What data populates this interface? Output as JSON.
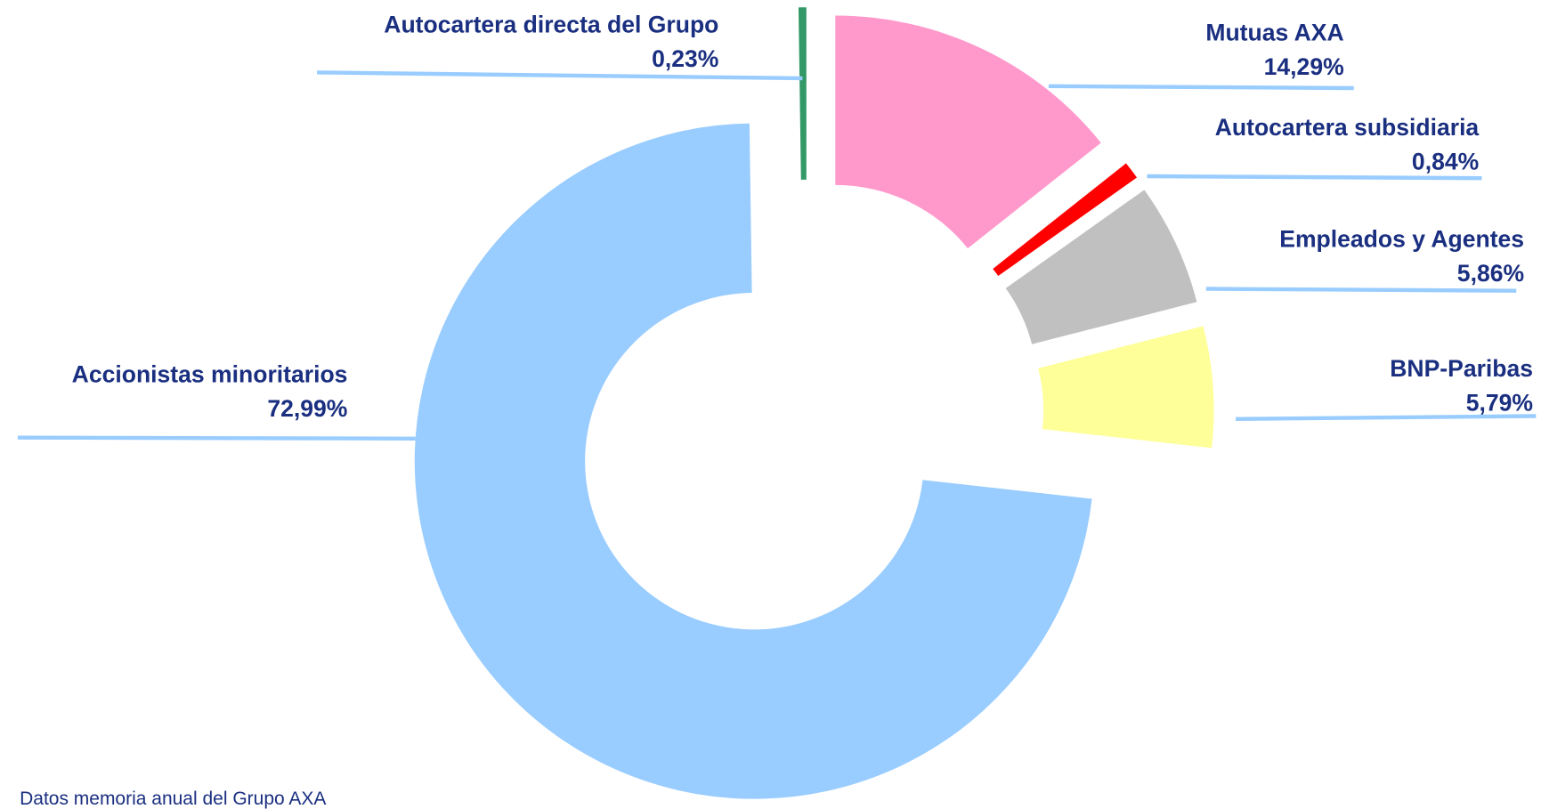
{
  "chart_data": {
    "type": "donut",
    "categories": [
      "Mutuas AXA",
      "Autocartera subsidiaria",
      "Empleados y Agentes",
      "BNP-Paribas",
      "Accionistas minoritarios",
      "Autocartera directa del Grupo"
    ],
    "values": [
      14.29,
      0.84,
      5.86,
      5.79,
      72.99,
      0.23
    ],
    "value_labels": [
      "14,29%",
      "0,84%",
      "5,86%",
      "5,79%",
      "72,99%",
      "0,23%"
    ],
    "colors": [
      "#ff99cc",
      "#ff0000",
      "#c0c0c0",
      "#ffff99",
      "#99ccff",
      "#339966"
    ],
    "source": "Datos memoria anual del Grupo AXA"
  }
}
